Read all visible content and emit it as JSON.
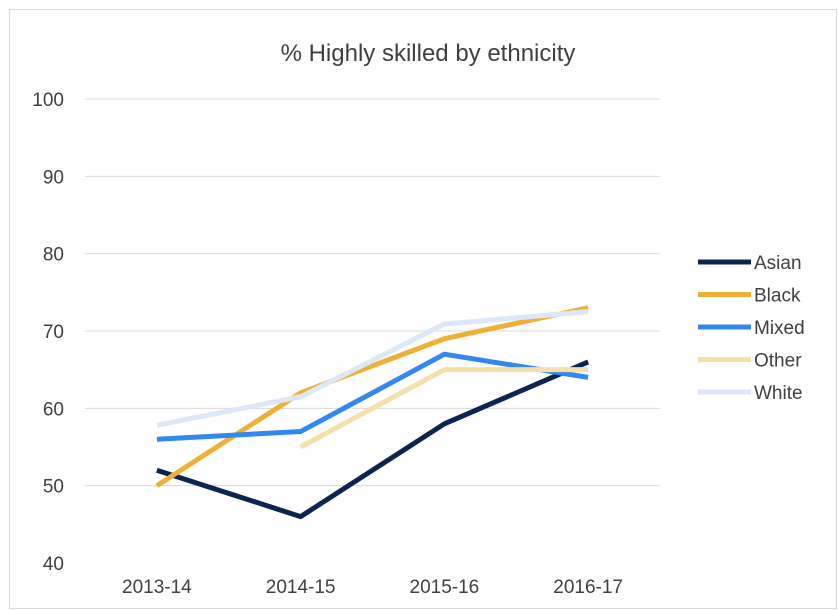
{
  "chart_data": {
    "type": "line",
    "title": "% Highly skilled by ethnicity",
    "xlabel": "",
    "ylabel": "",
    "categories": [
      "2013-14",
      "2014-15",
      "2015-16",
      "2016-17"
    ],
    "ylim": [
      40,
      100
    ],
    "yticks": [
      40,
      50,
      60,
      70,
      80,
      90,
      100
    ],
    "grid": true,
    "legend_position": "right",
    "series": [
      {
        "name": "Asian",
        "color": "#0b2550",
        "values": [
          52,
          46,
          58,
          66
        ]
      },
      {
        "name": "Black",
        "color": "#f0b037",
        "values": [
          50,
          62,
          69,
          73
        ]
      },
      {
        "name": "Mixed",
        "color": "#3388f0",
        "values": [
          56,
          57,
          67,
          64
        ]
      },
      {
        "name": "Other",
        "color": "#f5e0a8",
        "values": [
          null,
          55,
          65,
          65
        ]
      },
      {
        "name": "White",
        "color": "#dce8f8",
        "values": [
          57.8,
          61.5,
          70.9,
          72.5
        ]
      }
    ]
  }
}
